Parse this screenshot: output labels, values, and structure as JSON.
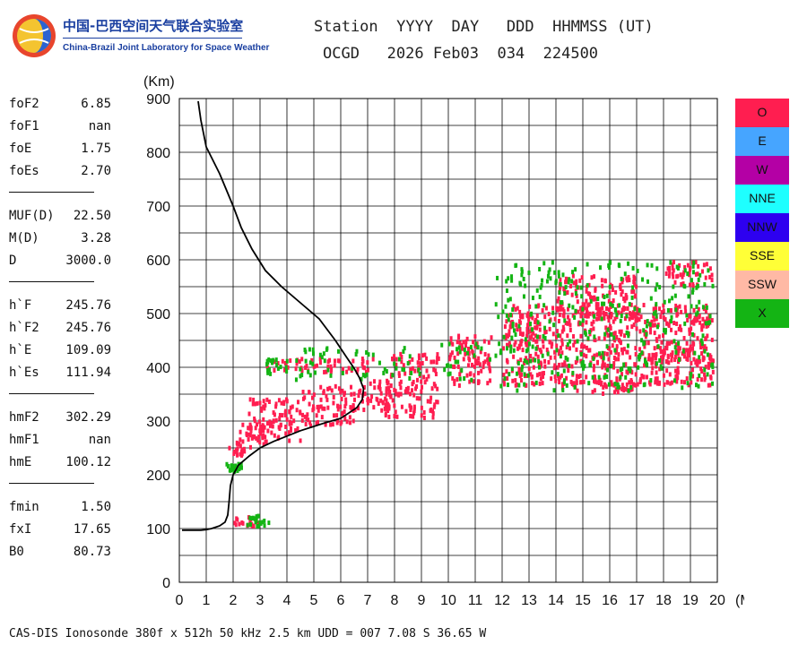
{
  "logo": {
    "name_cn": "中国-巴西空间天气联合实验室",
    "name_en": "China-Brazil Joint Laboratory for Space Weather"
  },
  "header": {
    "labels": "Station  YYYY  DAY   DDD  HHMMSS (UT)",
    "values": "OCGD   2026 Feb03  034  224500"
  },
  "parameters": [
    [
      {
        "label": "foF2",
        "value": "6.85"
      },
      {
        "label": "foF1",
        "value": "nan"
      },
      {
        "label": "foE",
        "value": "1.75"
      },
      {
        "label": "foEs",
        "value": "2.70"
      }
    ],
    [
      {
        "label": "MUF(D)",
        "value": "22.50"
      },
      {
        "label": "M(D)",
        "value": "3.28"
      },
      {
        "label": "D",
        "value": "3000.0"
      }
    ],
    [
      {
        "label": "h`F",
        "value": "245.76"
      },
      {
        "label": "h`F2",
        "value": "245.76"
      },
      {
        "label": "h`E",
        "value": "109.09"
      },
      {
        "label": "h`Es",
        "value": "111.94"
      }
    ],
    [
      {
        "label": "hmF2",
        "value": "302.29"
      },
      {
        "label": "hmF1",
        "value": "nan"
      },
      {
        "label": "hmE",
        "value": "100.12"
      }
    ],
    [
      {
        "label": "fmin",
        "value": "1.50"
      },
      {
        "label": "fxI",
        "value": "17.65"
      },
      {
        "label": "B0",
        "value": "80.73"
      }
    ]
  ],
  "legend": [
    {
      "label": "O",
      "color": "#ff1e50"
    },
    {
      "label": "E",
      "color": "#46a5ff"
    },
    {
      "label": "W",
      "color": "#b400a5"
    },
    {
      "label": "NNE",
      "color": "#1effff"
    },
    {
      "label": "NNW",
      "color": "#2d00f0"
    },
    {
      "label": "SSE",
      "color": "#ffff37"
    },
    {
      "label": "SSW",
      "color": "#ffb9a5"
    },
    {
      "label": "X",
      "color": "#14b414"
    }
  ],
  "footer": "CAS-DIS Ionosonde 380f x 512h 50 kHz 2.5 km UDD = 007 7.08 S 36.65 W",
  "chart_data": {
    "type": "scatter",
    "xlabel": "(MHz)",
    "ylabel": "(Km)",
    "xlim": [
      0,
      20
    ],
    "ylim": [
      0,
      900
    ],
    "x_ticks": [
      0,
      1,
      2,
      3,
      4,
      5,
      6,
      7,
      8,
      9,
      10,
      11,
      12,
      13,
      14,
      15,
      16,
      17,
      18,
      19,
      20
    ],
    "y_ticks": [
      0,
      100,
      200,
      300,
      400,
      500,
      600,
      700,
      800,
      900
    ],
    "grid": true,
    "legend_position": "right",
    "series": [
      {
        "name": "O",
        "color": "#ff1e50",
        "regions": [
          {
            "x": [
              1.9,
              2.9
            ],
            "y": [
              105,
              125
            ]
          },
          {
            "x": [
              1.8,
              2.5
            ],
            "y": [
              240,
              265
            ]
          },
          {
            "x": [
              2.2,
              3.5
            ],
            "y": [
              255,
              300
            ]
          },
          {
            "x": [
              2.5,
              4.5
            ],
            "y": [
              265,
              345
            ]
          },
          {
            "x": [
              4.5,
              6.5
            ],
            "y": [
              295,
              370
            ]
          },
          {
            "x": [
              3.2,
              7.2
            ],
            "y": [
              395,
              420
            ]
          },
          {
            "x": [
              6.5,
              7.8
            ],
            "y": [
              320,
              380
            ]
          },
          {
            "x": [
              7.6,
              9.6
            ],
            "y": [
              310,
              385
            ]
          },
          {
            "x": [
              7.8,
              9.6
            ],
            "y": [
              385,
              430
            ]
          },
          {
            "x": [
              10.0,
              11.6
            ],
            "y": [
              370,
              465
            ]
          },
          {
            "x": [
              12.0,
              19.8
            ],
            "y": [
              370,
              520
            ]
          },
          {
            "x": [
              14.0,
              16.8
            ],
            "y": [
              355,
              380
            ]
          },
          {
            "x": [
              14.0,
              17.0
            ],
            "y": [
              490,
              575
            ]
          },
          {
            "x": [
              17.5,
              19.8
            ],
            "y": [
              410,
              450
            ]
          },
          {
            "x": [
              18.0,
              19.8
            ],
            "y": [
              555,
              600
            ]
          }
        ]
      },
      {
        "name": "X",
        "color": "#14b414",
        "regions": [
          {
            "x": [
              2.3,
              3.3
            ],
            "y": [
              108,
              128
            ]
          },
          {
            "x": [
              1.7,
              2.3
            ],
            "y": [
              210,
              225
            ]
          },
          {
            "x": [
              3.2,
              4.0
            ],
            "y": [
              390,
              420
            ]
          },
          {
            "x": [
              4.0,
              9.0
            ],
            "y": [
              380,
              440
            ]
          },
          {
            "x": [
              9.6,
              11.6
            ],
            "y": [
              380,
              450
            ]
          },
          {
            "x": [
              11.7,
              19.8
            ],
            "y": [
              360,
              600
            ]
          }
        ]
      }
    ],
    "virtual_height_profile": {
      "x": [
        0.1,
        0.5,
        0.8,
        1.0,
        1.2,
        1.5,
        1.7,
        1.8,
        1.85,
        1.9,
        2.0,
        2.2,
        2.6,
        3.0,
        3.5,
        4.0,
        4.5,
        5.0,
        5.5,
        6.0,
        6.3,
        6.6,
        6.8,
        6.85,
        6.7,
        6.5,
        6.2,
        5.8,
        5.2,
        4.5,
        3.8,
        3.2,
        2.7,
        2.3,
        2.0,
        1.5,
        1.0,
        0.8,
        0.7
      ],
      "y": [
        97,
        97,
        97,
        98,
        100,
        105,
        112,
        125,
        150,
        180,
        200,
        218,
        235,
        250,
        262,
        272,
        282,
        290,
        298,
        305,
        315,
        325,
        340,
        360,
        380,
        398,
        420,
        450,
        490,
        520,
        550,
        580,
        620,
        660,
        700,
        760,
        810,
        860,
        895
      ]
    }
  }
}
